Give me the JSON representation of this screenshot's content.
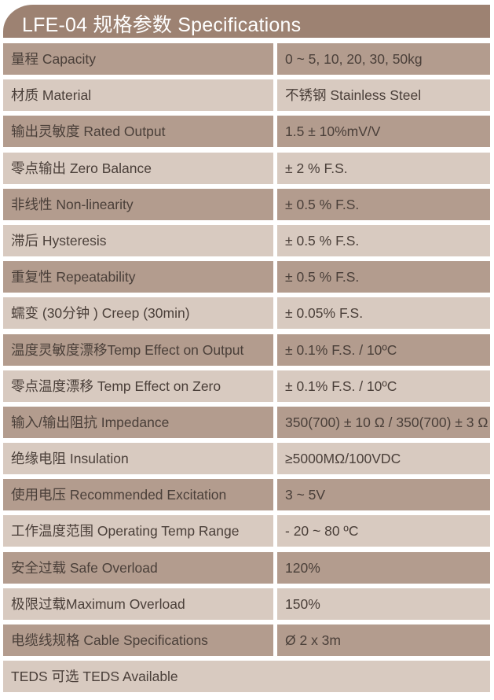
{
  "title": "LFE-04 规格参数 Specifications",
  "colors": {
    "header": "#9d8272",
    "row_dark": "#b39c8e",
    "row_light": "#d8cac0",
    "text": "#4a3f39"
  },
  "rows": [
    {
      "label": "量程 Capacity",
      "value": "0 ~ 5, 10, 20, 30, 50kg"
    },
    {
      "label": "材质 Material",
      "value": "不锈钢 Stainless Steel"
    },
    {
      "label": "输出灵敏度 Rated Output",
      "value": "1.5 ± 10%mV/V"
    },
    {
      "label": "零点输出  Zero Balance",
      "value": "± 2 % F.S."
    },
    {
      "label": "非线性 Non-linearity",
      "value": "± 0.5 % F.S."
    },
    {
      "label": "滞后 Hysteresis",
      "value": "± 0.5 % F.S."
    },
    {
      "label": "重复性 Repeatability",
      "value": "± 0.5 % F.S."
    },
    {
      "label": "蠕变 (30分钟 ) Creep (30min)",
      "value": "± 0.05% F.S."
    },
    {
      "label": "温度灵敏度漂移Temp Effect on Output",
      "value": "± 0.1% F.S. / 10ºC"
    },
    {
      "label": "零点温度漂移 Temp Effect on Zero",
      "value": "± 0.1% F.S. / 10ºC"
    },
    {
      "label": "输入/输出阻抗 Impedance",
      "value": "350(700) ± 10 Ω / 350(700) ± 3 Ω"
    },
    {
      "label": "绝缘电阻  Insulation",
      "value": "≥5000MΩ/100VDC"
    },
    {
      "label": "使用电压 Recommended Excitation",
      "value": "3 ~ 5V"
    },
    {
      "label": "工作温度范围 Operating Temp  Range",
      "value": "- 20 ~ 80 ºC"
    },
    {
      "label": "安全过载 Safe Overload",
      "value": "120%"
    },
    {
      "label": "极限过载Maximum Overload",
      "value": "150%"
    },
    {
      "label": "电缆线规格 Cable Specifications",
      "value": "Ø 2  x 3m"
    }
  ],
  "footer_row": "TEDS 可选 TEDS Available"
}
